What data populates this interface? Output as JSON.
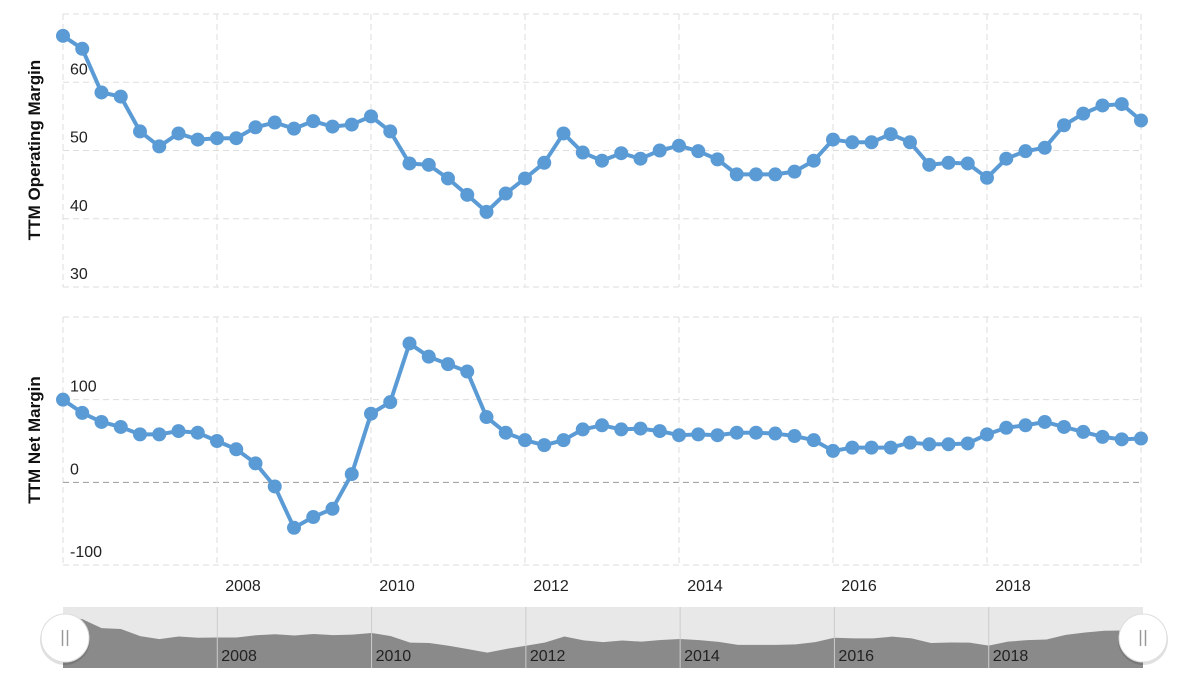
{
  "chart_data": [
    {
      "type": "line",
      "y_label": "TTM Operating Margin",
      "color": "#5b9bd5",
      "x": [
        2006,
        2006.25,
        2006.5,
        2006.75,
        2007,
        2007.25,
        2007.5,
        2007.75,
        2008,
        2008.25,
        2008.5,
        2008.75,
        2009,
        2009.25,
        2009.5,
        2009.75,
        2010,
        2010.25,
        2010.5,
        2010.75,
        2011,
        2011.25,
        2011.5,
        2011.75,
        2012,
        2012.25,
        2012.5,
        2012.75,
        2013,
        2013.25,
        2013.5,
        2013.75,
        2014,
        2014.25,
        2014.5,
        2014.75,
        2015,
        2015.25,
        2015.5,
        2015.75,
        2016,
        2016.25,
        2016.5,
        2016.75,
        2017,
        2017.25,
        2017.5,
        2017.75,
        2018,
        2018.25,
        2018.5,
        2018.75,
        2019,
        2019.25,
        2019.5,
        2019.75,
        2020
      ],
      "values": [
        66.8,
        64.9,
        58.5,
        57.9,
        52.8,
        50.6,
        52.5,
        51.6,
        51.8,
        51.8,
        53.4,
        54.1,
        53.2,
        54.3,
        53.5,
        53.8,
        55,
        52.8,
        48.1,
        47.9,
        45.9,
        43.5,
        41,
        43.7,
        45.9,
        48.2,
        52.5,
        49.7,
        48.5,
        49.6,
        48.8,
        50,
        50.7,
        49.9,
        48.7,
        46.5,
        46.5,
        46.5,
        46.9,
        48.5,
        51.6,
        51.2,
        51.2,
        52.4,
        51.2,
        47.9,
        48.2,
        48.1,
        46,
        48.8,
        49.9,
        50.4,
        53.7,
        55.4,
        56.6,
        56.8,
        54.4
      ],
      "xlim": [
        2006,
        2020
      ],
      "xticks": [
        2008,
        2010,
        2012,
        2014,
        2016,
        2018
      ],
      "ylim": [
        30,
        70
      ],
      "yticks": [
        30,
        40,
        50,
        60
      ],
      "grid": true
    },
    {
      "type": "line",
      "y_label": "TTM Net Margin",
      "color": "#5b9bd5",
      "x": [
        2006,
        2006.25,
        2006.5,
        2006.75,
        2007,
        2007.25,
        2007.5,
        2007.75,
        2008,
        2008.25,
        2008.5,
        2008.75,
        2009,
        2009.25,
        2009.5,
        2009.75,
        2010,
        2010.25,
        2010.5,
        2010.75,
        2011,
        2011.25,
        2011.5,
        2011.75,
        2012,
        2012.25,
        2012.5,
        2012.75,
        2013,
        2013.25,
        2013.5,
        2013.75,
        2014,
        2014.25,
        2014.5,
        2014.75,
        2015,
        2015.25,
        2015.5,
        2015.75,
        2016,
        2016.25,
        2016.5,
        2016.75,
        2017,
        2017.25,
        2017.5,
        2017.75,
        2018,
        2018.25,
        2018.5,
        2018.75,
        2019,
        2019.25,
        2019.5,
        2019.75,
        2020
      ],
      "values": [
        100,
        84,
        73,
        67,
        58,
        58,
        62,
        60,
        50,
        40,
        23,
        -5,
        -55,
        -42,
        -32,
        10,
        83,
        97,
        168,
        152,
        143,
        134,
        79,
        60,
        51,
        45,
        51,
        64,
        69,
        64,
        65,
        62,
        57,
        58,
        57,
        60,
        60,
        59,
        56,
        51,
        38,
        42,
        42,
        42,
        48,
        46,
        46,
        47,
        58,
        66,
        69,
        73,
        67,
        61,
        55,
        52,
        53
      ],
      "xlim": [
        2006,
        2020
      ],
      "xticks": [
        2008,
        2010,
        2012,
        2014,
        2016,
        2018
      ],
      "ylim": [
        -100,
        200
      ],
      "yticks": [
        -100,
        0,
        100
      ],
      "grid": true
    }
  ]
}
